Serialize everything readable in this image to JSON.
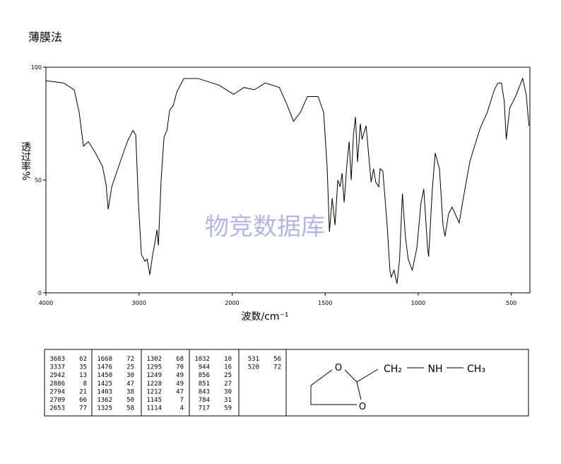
{
  "chart_data": {
    "type": "line",
    "title": "薄膜法",
    "ylabel": "透过率%",
    "xlabel": "波数/cm⁻¹",
    "watermark": "物竞数据库",
    "xlim": [
      4000,
      400
    ],
    "xbreak": 2000,
    "xticks": [
      4000,
      3000,
      2000,
      1500,
      1000,
      500
    ],
    "ylim": [
      0,
      100
    ],
    "yticks": [
      0,
      50,
      100
    ],
    "x": [
      4000,
      3810,
      3696,
      3643,
      3597,
      3544,
      3468,
      3392,
      3354,
      3331,
      3293,
      3202,
      3126,
      3065,
      3035,
      3005,
      2974,
      2936,
      2913,
      2883,
      2853,
      2830,
      2807,
      2792,
      2761,
      2731,
      2700,
      2670,
      2632,
      2594,
      2518,
      2366,
      2214,
      2138,
      2062,
      1992,
      1936,
      1879,
      1822,
      1746,
      1708,
      1670,
      1633,
      1595,
      1538,
      1508,
      1489,
      1477,
      1462,
      1447,
      1432,
      1420,
      1409,
      1398,
      1383,
      1371,
      1360,
      1348,
      1337,
      1326,
      1311,
      1302,
      1295,
      1280,
      1265,
      1253,
      1240,
      1228,
      1212,
      1205,
      1190,
      1167,
      1152,
      1145,
      1130,
      1114,
      1100,
      1085,
      1069,
      1054,
      1032,
      1007,
      985,
      970,
      950,
      944,
      925,
      909,
      886,
      867,
      856,
      837,
      818,
      780,
      762,
      723,
      705,
      667,
      629,
      591,
      572,
      553,
      538,
      527,
      508,
      477,
      439,
      420,
      405
    ],
    "series": [
      {
        "color": "#000000",
        "values": [
          94,
          93,
          90,
          80,
          65,
          67,
          62,
          56,
          48,
          37,
          47,
          58,
          67,
          72,
          70,
          39,
          17,
          14,
          15,
          8,
          17,
          22,
          28,
          21,
          51,
          69,
          72,
          81,
          83,
          89,
          95,
          95,
          93,
          92,
          90,
          88,
          91,
          90,
          93,
          91,
          84,
          76,
          80,
          87,
          87,
          80,
          55,
          27,
          42,
          30,
          50,
          47,
          53,
          40,
          57,
          67,
          50,
          70,
          78,
          58,
          75,
          68,
          70,
          74,
          60,
          49,
          55,
          49,
          47,
          55,
          54,
          30,
          10,
          7,
          10,
          4,
          15,
          44,
          25,
          15,
          10,
          20,
          40,
          46,
          20,
          16,
          45,
          62,
          55,
          30,
          25,
          35,
          38,
          31,
          40,
          58,
          63,
          73,
          80,
          90,
          93,
          93,
          85,
          68,
          82,
          87,
          95,
          88,
          74
        ]
      }
    ]
  },
  "peak_table": [
    [
      [
        "3683",
        "62"
      ],
      [
        "3337",
        "35"
      ],
      [
        "2942",
        "13"
      ],
      [
        "2886",
        "8"
      ],
      [
        "2794",
        "21"
      ],
      [
        "2709",
        "66"
      ],
      [
        "2653",
        "77"
      ]
    ],
    [
      [
        "1668",
        "72"
      ],
      [
        "1476",
        "25"
      ],
      [
        "1450",
        "30"
      ],
      [
        "1425",
        "47"
      ],
      [
        "1403",
        "38"
      ],
      [
        "1362",
        "50"
      ],
      [
        "1325",
        "58"
      ]
    ],
    [
      [
        "1302",
        "68"
      ],
      [
        "1295",
        "70"
      ],
      [
        "1249",
        "49"
      ],
      [
        "1228",
        "49"
      ],
      [
        "1212",
        "47"
      ],
      [
        "1145",
        "7"
      ],
      [
        "1114",
        "4"
      ]
    ],
    [
      [
        "1032",
        "10"
      ],
      [
        "944",
        "16"
      ],
      [
        "856",
        "25"
      ],
      [
        "851",
        "27"
      ],
      [
        "843",
        "30"
      ],
      [
        "784",
        "31"
      ],
      [
        "717",
        "59"
      ]
    ],
    [
      [
        "531",
        "56"
      ],
      [
        "520",
        "72"
      ]
    ]
  ],
  "structure": {
    "ring_o1": "O",
    "ring_o2": "O",
    "chain": [
      "CH₂",
      "NH",
      "CH₃"
    ]
  }
}
